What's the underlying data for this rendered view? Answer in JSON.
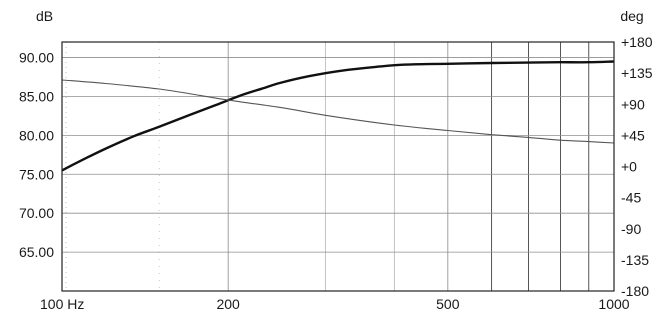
{
  "chart_data": {
    "type": "line",
    "left_unit": "dB",
    "right_unit": "deg",
    "x_scale": "log",
    "xlim": [
      100,
      1000
    ],
    "y_left_lim": [
      60,
      92
    ],
    "y_right_lim": [
      -180,
      180
    ],
    "x_ticks": [
      {
        "value": 100,
        "label": "100 Hz"
      },
      {
        "value": 200,
        "label": "200"
      },
      {
        "value": 500,
        "label": "500"
      },
      {
        "value": 1000,
        "label": "1000"
      }
    ],
    "y_left_ticks": [
      {
        "value": 90,
        "label": "90.00"
      },
      {
        "value": 85,
        "label": "85.00"
      },
      {
        "value": 80,
        "label": "80.00"
      },
      {
        "value": 75,
        "label": "75.00"
      },
      {
        "value": 70,
        "label": "70.00"
      },
      {
        "value": 65,
        "label": "65.00"
      }
    ],
    "y_right_ticks": [
      {
        "value": 180,
        "label": "+180"
      },
      {
        "value": 135,
        "label": "+135"
      },
      {
        "value": 90,
        "label": "+90"
      },
      {
        "value": 45,
        "label": "+45"
      },
      {
        "value": 0,
        "label": "+0"
      },
      {
        "value": -45,
        "label": "-45"
      },
      {
        "value": -90,
        "label": "-90"
      },
      {
        "value": -135,
        "label": "-135"
      },
      {
        "value": -180,
        "label": "-180"
      }
    ],
    "grid": true,
    "series": [
      {
        "axis": "left",
        "style": "thick",
        "x": [
          100,
          110,
          120,
          135,
          150,
          170,
          190,
          210,
          230,
          250,
          280,
          320,
          370,
          420,
          500,
          600,
          700,
          800,
          900,
          1000
        ],
        "y": [
          75.5,
          77.0,
          78.3,
          79.9,
          81.1,
          82.6,
          83.9,
          85.1,
          86.0,
          86.8,
          87.6,
          88.3,
          88.8,
          89.1,
          89.2,
          89.3,
          89.35,
          89.4,
          89.4,
          89.5
        ]
      },
      {
        "axis": "right",
        "style": "thin",
        "x": [
          100,
          120,
          150,
          180,
          200,
          250,
          300,
          400,
          500,
          600,
          700,
          800,
          900,
          1000
        ],
        "y": [
          125,
          120,
          112,
          102,
          96,
          85,
          74,
          60,
          52,
          46,
          42,
          38,
          36,
          34
        ]
      }
    ]
  }
}
